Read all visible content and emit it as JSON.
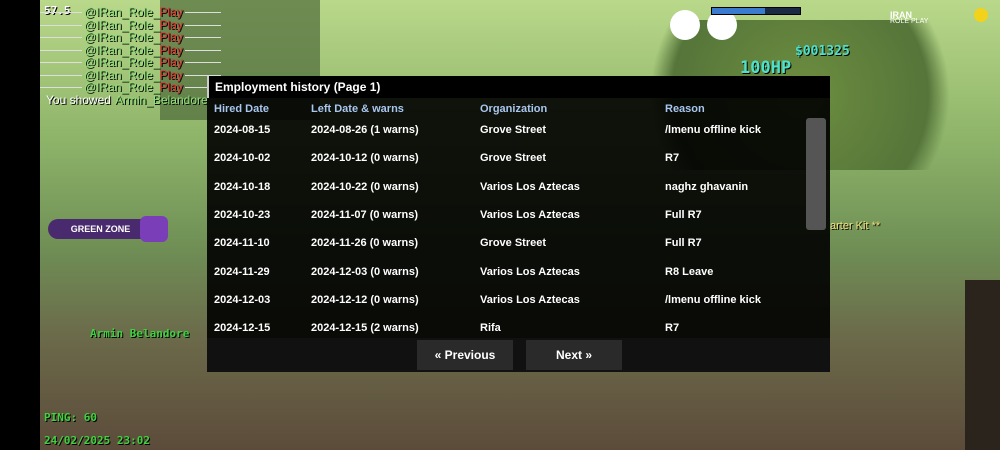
{
  "hud": {
    "fps": "57.5",
    "money": "$001325",
    "health": "100HP",
    "logo_top": "IRAN",
    "logo_bottom": "ROLE PLAY",
    "zone": "GREEN ZONE",
    "player_name": "Armin Belandore",
    "pickup": "arter Kit **",
    "ping": "PING: 60",
    "datetime": "24/02/2025 23:02"
  },
  "chat": {
    "lines": [
      {
        "name": "@IRan_Role_",
        "tag": "Play"
      },
      {
        "name": "@IRan_Role_",
        "tag": "Play"
      },
      {
        "name": "@IRan_Role_",
        "tag": "Play"
      },
      {
        "name": "@IRan_Role_",
        "tag": "Play"
      },
      {
        "name": "@IRan_Role_",
        "tag": "Play"
      },
      {
        "name": "@IRan_Role_",
        "tag": "Play"
      },
      {
        "name": "@IRan_Role_",
        "tag": "Play"
      }
    ],
    "last": {
      "prefix": "You showed",
      "name": "Armin_Belandore"
    }
  },
  "dialog": {
    "title": "Employment history (Page 1)",
    "headers": [
      "Hired Date",
      "Left Date & warns",
      "Organization",
      "Reason"
    ],
    "rows": [
      [
        "2024-08-15",
        "2024-08-26 (1 warns)",
        "Grove Street",
        "/lmenu offline kick"
      ],
      [
        "2024-10-02",
        "2024-10-12 (0 warns)",
        "Grove Street",
        "R7"
      ],
      [
        "2024-10-18",
        "2024-10-22 (0 warns)",
        "Varios Los Aztecas",
        "naghz ghavanin"
      ],
      [
        "2024-10-23",
        "2024-11-07 (0 warns)",
        "Varios Los Aztecas",
        "Full R7"
      ],
      [
        "2024-11-10",
        "2024-11-26 (0 warns)",
        "Grove Street",
        "Full R7"
      ],
      [
        "2024-11-29",
        "2024-12-03 (0 warns)",
        "Varios Los Aztecas",
        "R8 Leave"
      ],
      [
        "2024-12-03",
        "2024-12-12 (0 warns)",
        "Varios Los Aztecas",
        "/lmenu offline kick"
      ],
      [
        "2024-12-15",
        "2024-12-15 (2 warns)",
        "Rifa",
        "R7"
      ]
    ],
    "buttons": [
      "« Previous",
      "Next »"
    ]
  }
}
